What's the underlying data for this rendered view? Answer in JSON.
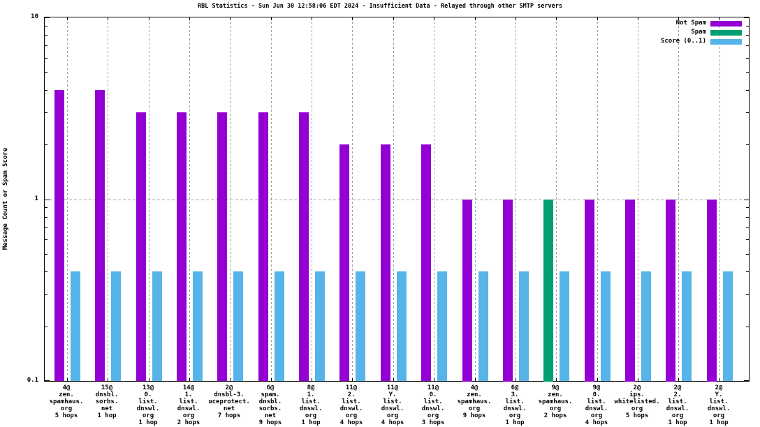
{
  "chart_data": {
    "type": "bar",
    "title": "RBL Statistics - Sun Jun 30 12:58:06 EDT 2024 - Insufficient Data - Relayed through other SMTP servers",
    "ylabel": "Message Count or Spam Score",
    "xlabel": "",
    "yscale": "log",
    "ylim": [
      0.1,
      10
    ],
    "yticks": [
      {
        "value": 0.1,
        "label": "0.1"
      },
      {
        "value": 1,
        "label": "1"
      },
      {
        "value": 10,
        "label": "10"
      }
    ],
    "grid": {
      "horizontal_at": [
        1
      ],
      "vertical": "every-category",
      "color": "#9e9e9e"
    },
    "legend": {
      "position": "top-right",
      "entries": [
        {
          "label": "Not Spam",
          "color": "#9400d3"
        },
        {
          "label": "Spam",
          "color": "#009e73"
        },
        {
          "label": "Score (0..1)",
          "color": "#56b4e9"
        }
      ]
    },
    "series_colors": {
      "Not Spam": "#9400d3",
      "Spam": "#009e73",
      "Score (0..1)": "#56b4e9"
    },
    "categories": [
      {
        "label_lines": [
          "4@",
          "zen.",
          "spamhaus.",
          "org",
          "5 hops"
        ],
        "count_series": "Not Spam",
        "count": 4,
        "score": 0.4
      },
      {
        "label_lines": [
          "15@",
          "dnsbl.",
          "sorbs.",
          "net",
          "1 hop"
        ],
        "count_series": "Not Spam",
        "count": 4,
        "score": 0.4
      },
      {
        "label_lines": [
          "13@",
          "0.",
          "list.",
          "dnswl.",
          "org",
          "1 hop"
        ],
        "count_series": "Not Spam",
        "count": 3,
        "score": 0.4
      },
      {
        "label_lines": [
          "14@",
          "1.",
          "list.",
          "dnswl.",
          "org",
          "2 hops"
        ],
        "count_series": "Not Spam",
        "count": 3,
        "score": 0.4
      },
      {
        "label_lines": [
          "2@",
          "dnsbl-3.",
          "uceprotect.",
          "net",
          "7 hops"
        ],
        "count_series": "Not Spam",
        "count": 3,
        "score": 0.4
      },
      {
        "label_lines": [
          "6@",
          "spam.",
          "dnsbl.",
          "sorbs.",
          "net",
          "9 hops"
        ],
        "count_series": "Not Spam",
        "count": 3,
        "score": 0.4
      },
      {
        "label_lines": [
          "8@",
          "1.",
          "list.",
          "dnswl.",
          "org",
          "1 hop"
        ],
        "count_series": "Not Spam",
        "count": 3,
        "score": 0.4
      },
      {
        "label_lines": [
          "11@",
          "2.",
          "list.",
          "dnswl.",
          "org",
          "4 hops"
        ],
        "count_series": "Not Spam",
        "count": 2,
        "score": 0.4
      },
      {
        "label_lines": [
          "11@",
          "Y.",
          "list.",
          "dnswl.",
          "org",
          "4 hops"
        ],
        "count_series": "Not Spam",
        "count": 2,
        "score": 0.4
      },
      {
        "label_lines": [
          "11@",
          "0.",
          "list.",
          "dnswl.",
          "org",
          "3 hops"
        ],
        "count_series": "Not Spam",
        "count": 2,
        "score": 0.4
      },
      {
        "label_lines": [
          "4@",
          "zen.",
          "spamhaus.",
          "org",
          "9 hops"
        ],
        "count_series": "Not Spam",
        "count": 1,
        "score": 0.4
      },
      {
        "label_lines": [
          "6@",
          "3.",
          "list.",
          "dnswl.",
          "org",
          "1 hop"
        ],
        "count_series": "Not Spam",
        "count": 1,
        "score": 0.4
      },
      {
        "label_lines": [
          "9@",
          "zen.",
          "spamhaus.",
          "org",
          "2 hops"
        ],
        "count_series": "Spam",
        "count": 1,
        "score": 0.4
      },
      {
        "label_lines": [
          "9@",
          "0.",
          "list.",
          "dnswl.",
          "org",
          "4 hops"
        ],
        "count_series": "Not Spam",
        "count": 1,
        "score": 0.4
      },
      {
        "label_lines": [
          "2@",
          "ips.",
          "whitelisted.",
          "org",
          "5 hops"
        ],
        "count_series": "Not Spam",
        "count": 1,
        "score": 0.4
      },
      {
        "label_lines": [
          "2@",
          "2.",
          "list.",
          "dnswl.",
          "org",
          "1 hop"
        ],
        "count_series": "Not Spam",
        "count": 1,
        "score": 0.4
      },
      {
        "label_lines": [
          "2@",
          "Y.",
          "list.",
          "dnswl.",
          "org",
          "1 hop"
        ],
        "count_series": "Not Spam",
        "count": 1,
        "score": 0.4
      }
    ]
  }
}
